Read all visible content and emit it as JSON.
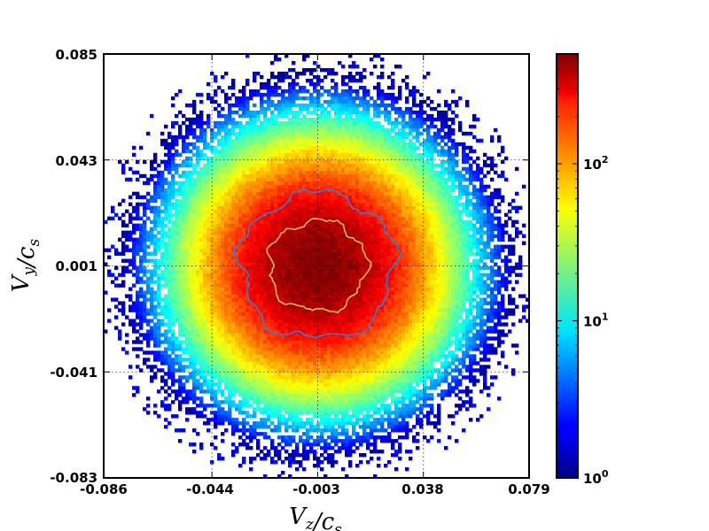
{
  "chart_data": {
    "type": "heatmap",
    "subtype": "2d-histogram",
    "xlabel": "V_z/c_s",
    "ylabel": "V_y/c_s",
    "xlim": [
      -0.086,
      0.079
    ],
    "ylim": [
      -0.083,
      0.085
    ],
    "x_ticks": [
      "-0.086",
      "-0.044",
      "-0.003",
      "0.038",
      "0.079"
    ],
    "y_ticks": [
      "-0.083",
      "-0.041",
      "0.001",
      "0.043",
      "0.085"
    ],
    "x_tick_values": [
      -0.086,
      -0.044,
      -0.003,
      0.038,
      0.079
    ],
    "y_tick_values": [
      -0.083,
      -0.041,
      0.001,
      0.043,
      0.085
    ],
    "grid": true,
    "colormap": "jet",
    "color_scale": "log",
    "colorbar": {
      "min": 1,
      "max": 500,
      "ticks": [
        {
          "base": "10",
          "exp": "0",
          "value": 1
        },
        {
          "base": "10",
          "exp": "1",
          "value": 10
        },
        {
          "base": "10",
          "exp": "2",
          "value": 100
        }
      ]
    },
    "distribution": {
      "center": [
        -0.003,
        0.001
      ],
      "peak_count": 500,
      "spread_x": 0.022,
      "spread_y": 0.022,
      "outer_radius": 0.076
    },
    "contours": [
      {
        "level": 100,
        "color": "#3a7bd5",
        "radius_x": 0.03,
        "radius_y": 0.029
      },
      {
        "level": 250,
        "color": "#e8c04a",
        "radius_x": 0.019,
        "radius_y": 0.018
      }
    ]
  }
}
